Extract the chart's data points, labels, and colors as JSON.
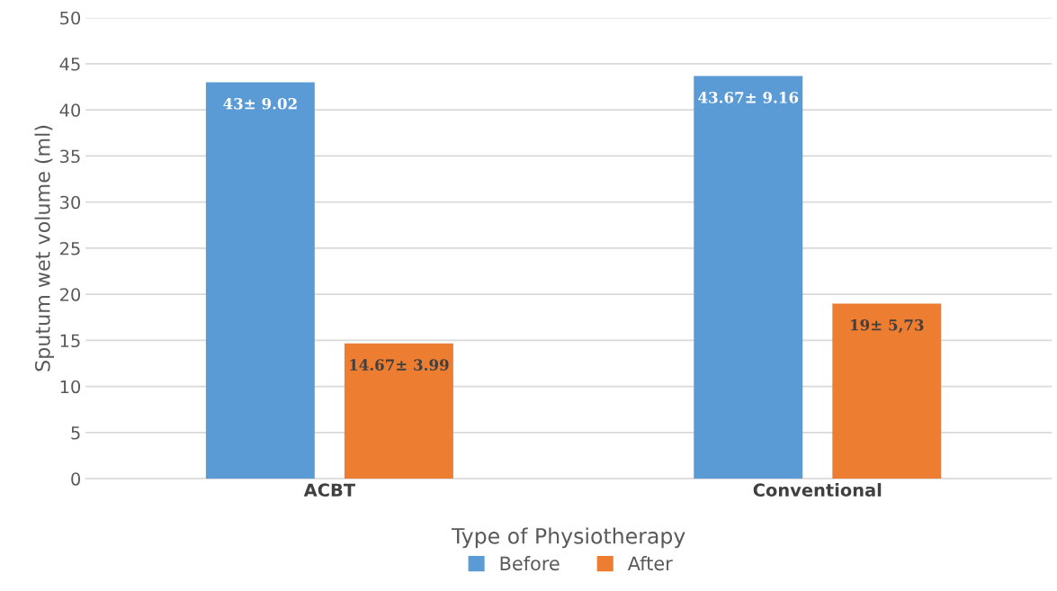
{
  "chart_data": {
    "type": "bar",
    "categories": [
      "ACBT",
      "Conventional"
    ],
    "xlabel": "Type of Physiotherapy",
    "ylabel": "Sputum wet volume (ml)",
    "series": [
      {
        "name": "Before",
        "color": "#5b9bd5",
        "values": [
          43,
          43.67
        ],
        "value_labels": [
          "43± 9.02",
          "43.67± 9.16"
        ]
      },
      {
        "name": "After",
        "color": "#ed7d31",
        "values": [
          14.67,
          19
        ],
        "value_labels": [
          "14.67± 3.99",
          "19± 5,73"
        ]
      }
    ],
    "ylim": [
      0,
      50
    ],
    "yticks": [
      0,
      5,
      10,
      15,
      20,
      25,
      30,
      35,
      40,
      45,
      50
    ],
    "grid": "y",
    "legend": "bottom"
  }
}
